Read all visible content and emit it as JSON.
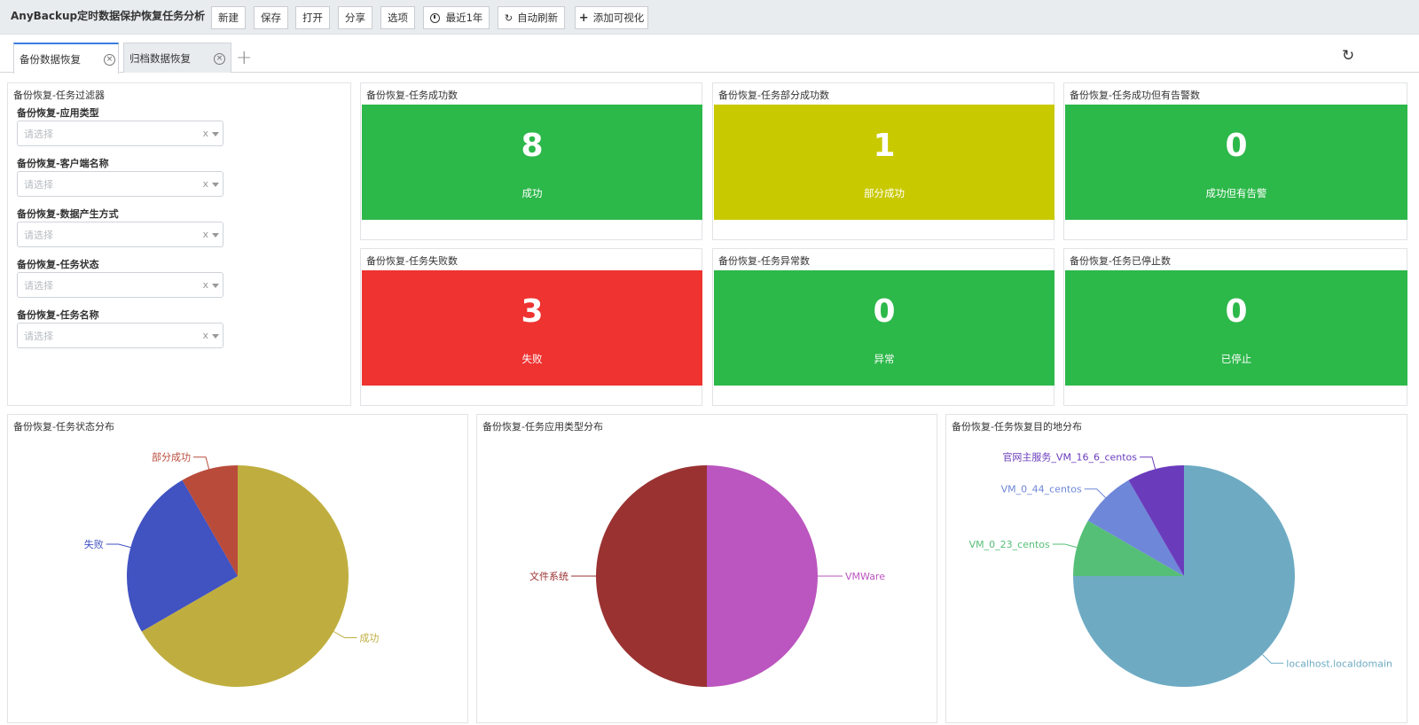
{
  "toolbar": {
    "title": "AnyBackup定时数据保护恢复任务分析",
    "new_label": "新建",
    "save_label": "保存",
    "open_label": "打开",
    "share_label": "分享",
    "options_label": "选项",
    "time_label": "最近1年",
    "auto_refresh_label": "自动刷新",
    "add_vis_label": "添加可视化"
  },
  "tabs": [
    {
      "label": "备份数据恢复",
      "active": true
    },
    {
      "label": "归档数据恢复",
      "active": false
    }
  ],
  "filter_panel": {
    "title": "备份恢复-任务过滤器",
    "filters": [
      {
        "label": "备份恢复-应用类型",
        "placeholder": "请选择"
      },
      {
        "label": "备份恢复-客户端名称",
        "placeholder": "请选择"
      },
      {
        "label": "备份恢复-数据产生方式",
        "placeholder": "请选择"
      },
      {
        "label": "备份恢复-任务状态",
        "placeholder": "请选择"
      },
      {
        "label": "备份恢复-任务名称",
        "placeholder": "请选择"
      }
    ],
    "clear_glyph": "x"
  },
  "metrics": [
    {
      "title": "备份恢复-任务成功数",
      "value": "8",
      "label": "成功",
      "color": "#2db84a"
    },
    {
      "title": "备份恢复-任务部分成功数",
      "value": "1",
      "label": "部分成功",
      "color": "#c9c900"
    },
    {
      "title": "备份恢复-任务成功但有告警数",
      "value": "0",
      "label": "成功但有告警",
      "color": "#2db84a"
    },
    {
      "title": "备份恢复-任务失败数",
      "value": "3",
      "label": "失败",
      "color": "#ee3331"
    },
    {
      "title": "备份恢复-任务异常数",
      "value": "0",
      "label": "异常",
      "color": "#2db84a"
    },
    {
      "title": "备份恢复-任务已停止数",
      "value": "0",
      "label": "已停止",
      "color": "#2db84a"
    }
  ],
  "chart_data": [
    {
      "type": "pie",
      "title": "备份恢复-任务状态分布",
      "slices": [
        {
          "name": "成功",
          "value": 8,
          "color": "#bfae3f"
        },
        {
          "name": "失败",
          "value": 3,
          "color": "#4152c1"
        },
        {
          "name": "部分成功",
          "value": 1,
          "color": "#b94b3b"
        }
      ]
    },
    {
      "type": "pie",
      "title": "备份恢复-任务应用类型分布",
      "slices": [
        {
          "name": "VMWare",
          "value": 1,
          "color": "#bb55bf"
        },
        {
          "name": "文件系统",
          "value": 1,
          "color": "#9a3232"
        }
      ]
    },
    {
      "type": "pie",
      "title": "备份恢复-任务恢复目的地分布",
      "slices": [
        {
          "name": "localhost.localdomain",
          "value": 9,
          "color": "#6eabc3"
        },
        {
          "name": "VM_0_23_centos",
          "value": 1,
          "color": "#55bf77"
        },
        {
          "name": "VM_0_44_centos",
          "value": 1,
          "color": "#6e87d8"
        },
        {
          "name": "官网主服务_VM_16_6_centos",
          "value": 1,
          "color": "#6a3cbc"
        }
      ]
    }
  ]
}
